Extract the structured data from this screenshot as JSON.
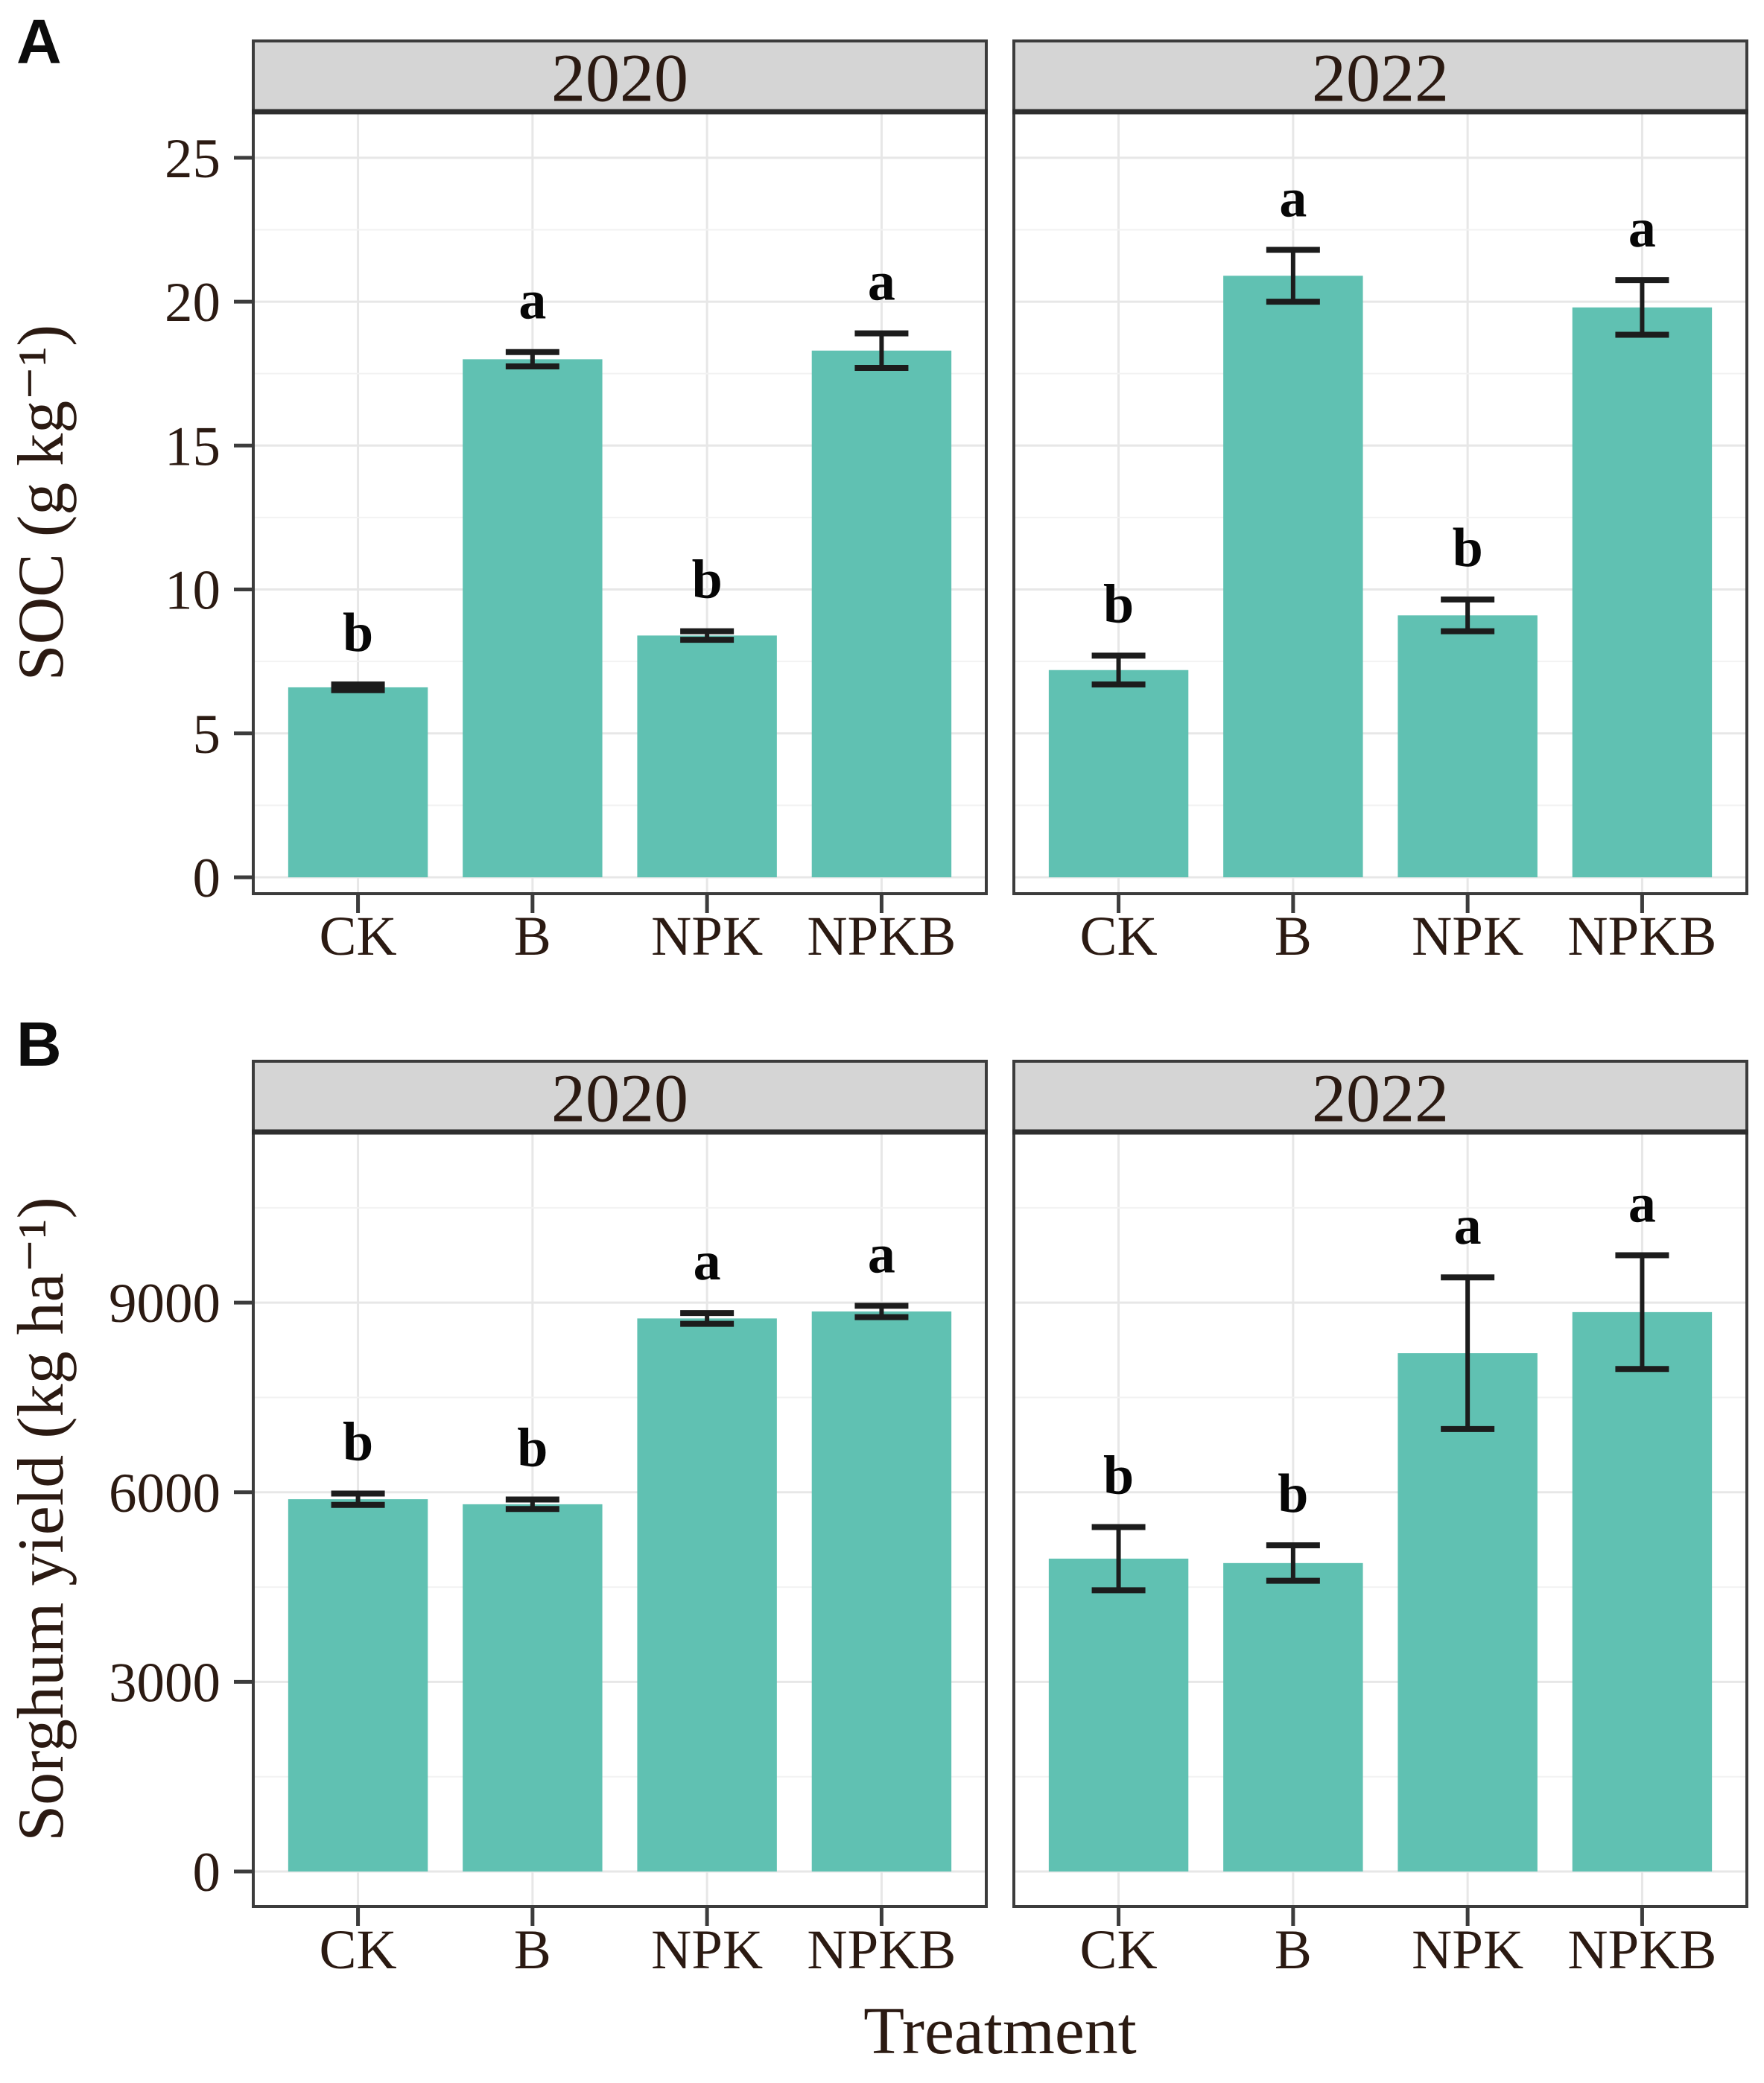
{
  "style": {
    "bar_color": "#60c1b2",
    "strip_bg": "#d5d5d5",
    "border_color": "#3c3c3c",
    "strip_heavy_border": "#2e2e2e",
    "grid_major": "#e7e7e7",
    "grid_minor": "#f2f2f2",
    "text_color": "#2b1a12",
    "error_color": "#1c1c1c",
    "panel_bg": "#ffffff"
  },
  "chart_data": [
    {
      "type": "bar",
      "panel_label": "A",
      "title": "",
      "ylabel": "SOC (g kg⁻¹)",
      "xlabel": "",
      "facet_labels": [
        "2020",
        "2022"
      ],
      "categories": [
        "CK",
        "B",
        "NPK",
        "NPKB"
      ],
      "ylim": [
        0,
        26.6
      ],
      "yticks": [
        0,
        5,
        10,
        15,
        20,
        25
      ],
      "grid": true,
      "legend": "none",
      "series": [
        {
          "facet": "2020",
          "values": [
            6.6,
            18.0,
            8.4,
            18.3
          ],
          "errors": [
            0.1,
            0.25,
            0.15,
            0.6
          ],
          "sig_letters": [
            "b",
            "a",
            "b",
            "a"
          ]
        },
        {
          "facet": "2022",
          "values": [
            7.2,
            20.9,
            9.1,
            19.8
          ],
          "errors": [
            0.5,
            0.9,
            0.55,
            0.95
          ],
          "sig_letters": [
            "b",
            "a",
            "b",
            "a"
          ]
        }
      ]
    },
    {
      "type": "bar",
      "panel_label": "B",
      "title": "",
      "ylabel": "Sorghum yield (kg ha⁻¹)",
      "xlabel": "Treatment",
      "facet_labels": [
        "2020",
        "2022"
      ],
      "categories": [
        "CK",
        "B",
        "NPK",
        "NPKB"
      ],
      "ylim": [
        0,
        11700
      ],
      "yticks": [
        0,
        3000,
        6000,
        9000
      ],
      "grid": true,
      "legend": "none",
      "series": [
        {
          "facet": "2020",
          "values": [
            5890,
            5810,
            8750,
            8860
          ],
          "errors": [
            90,
            75,
            85,
            90
          ],
          "sig_letters": [
            "b",
            "b",
            "a",
            "a"
          ]
        },
        {
          "facet": "2022",
          "values": [
            4950,
            4880,
            8200,
            8850
          ],
          "errors": [
            500,
            280,
            1200,
            900
          ],
          "sig_letters": [
            "b",
            "b",
            "a",
            "a"
          ]
        }
      ]
    }
  ]
}
